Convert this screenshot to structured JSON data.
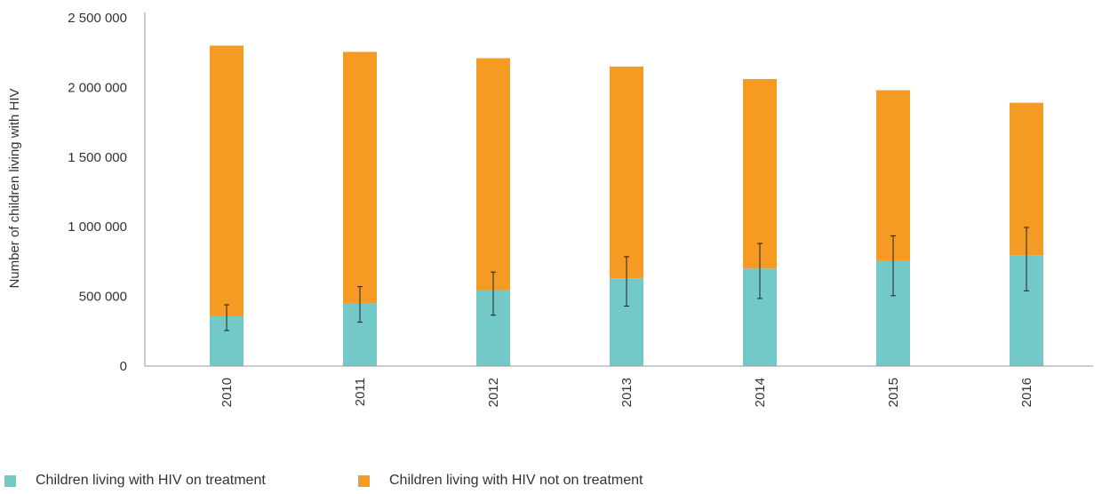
{
  "chart_data": {
    "type": "bar",
    "stacked": true,
    "categories": [
      "2010",
      "2011",
      "2012",
      "2013",
      "2014",
      "2015",
      "2016"
    ],
    "series": [
      {
        "name": "Children living with HIV on treatment",
        "color": "#72c9c8",
        "values": [
          360000,
          450000,
          545000,
          630000,
          700000,
          755000,
          795000
        ],
        "error_low": [
          255000,
          315000,
          365000,
          430000,
          485000,
          505000,
          540000
        ],
        "error_high": [
          440000,
          570000,
          675000,
          785000,
          880000,
          935000,
          995000
        ]
      },
      {
        "name": "Children living with HIV not on treatment",
        "color": "#f59a23",
        "values": [
          1940000,
          1805000,
          1665000,
          1520000,
          1360000,
          1225000,
          1095000
        ]
      }
    ],
    "title": "",
    "xlabel": "",
    "ylabel": "Number of children living with HIV",
    "ylim": [
      0,
      2500000
    ],
    "yticks": [
      0,
      500000,
      1000000,
      1500000,
      2000000,
      2500000
    ],
    "ytick_labels": [
      "0",
      "500 000",
      "1 000 000",
      "1 500 000",
      "2 000 000",
      "2 500 000"
    ],
    "grid": false,
    "legend_position": "bottom-left"
  }
}
